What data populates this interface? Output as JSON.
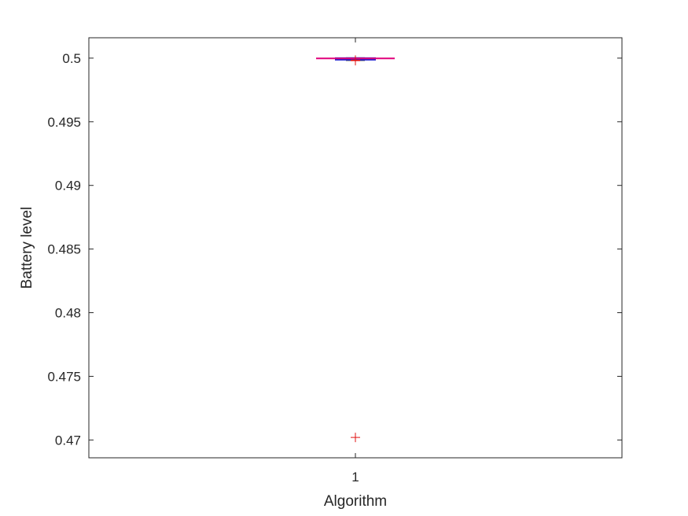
{
  "chart_data": {
    "type": "boxplot",
    "title": "",
    "xlabel": "Algorithm",
    "ylabel": "Battery level",
    "categories": [
      "1"
    ],
    "ylim": [
      0.4686,
      0.5016
    ],
    "yticks": [
      0.47,
      0.475,
      0.48,
      0.485,
      0.49,
      0.495,
      0.5
    ],
    "ytick_labels": [
      "0.47",
      "0.475",
      "0.48",
      "0.485",
      "0.49",
      "0.495",
      "0.5"
    ],
    "grid": false,
    "boxes": [
      {
        "category": "1",
        "q1": 0.4999,
        "median": 0.49998,
        "q3": 0.5,
        "whisker_low": 0.49985,
        "whisker_high": 0.5,
        "outliers": [
          0.4702,
          0.4998,
          0.49985
        ]
      }
    ],
    "colors": {
      "box": "#1f1fd0",
      "median": "#e0007a",
      "outlier": "#e01010",
      "axis": "#262626"
    }
  }
}
